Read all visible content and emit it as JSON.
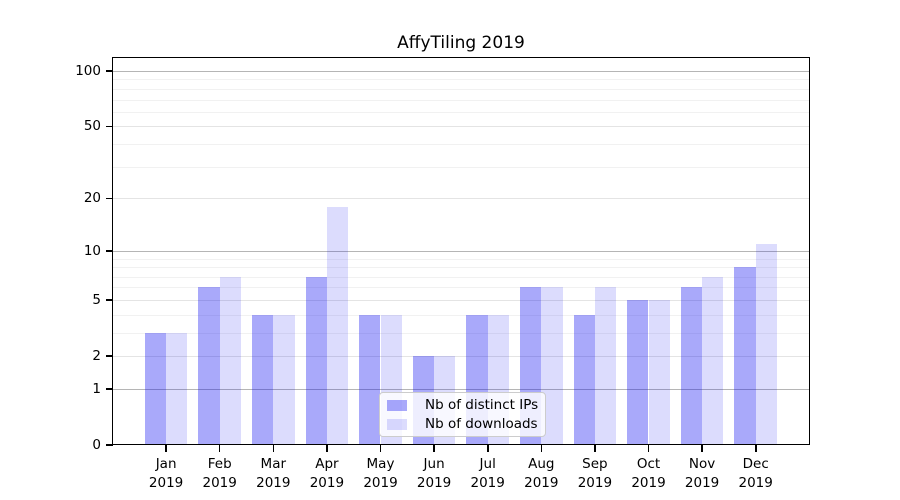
{
  "figure": {
    "title": "AffyTiling 2019",
    "background": "#ffffff"
  },
  "chart_data": {
    "type": "bar",
    "title": "AffyTiling 2019",
    "xlabel": "",
    "ylabel": "",
    "x_tick_labels": [
      [
        "Jan",
        "2019"
      ],
      [
        "Feb",
        "2019"
      ],
      [
        "Mar",
        "2019"
      ],
      [
        "Apr",
        "2019"
      ],
      [
        "May",
        "2019"
      ],
      [
        "Jun",
        "2019"
      ],
      [
        "Jul",
        "2019"
      ],
      [
        "Aug",
        "2019"
      ],
      [
        "Sep",
        "2019"
      ],
      [
        "Oct",
        "2019"
      ],
      [
        "Nov",
        "2019"
      ],
      [
        "Dec",
        "2019"
      ]
    ],
    "series": [
      {
        "name": "Nb of distinct IPs",
        "color": "rgba(10,10,240,0.35)",
        "solid_color_on_white": "#a9a9f9",
        "values": [
          3,
          6,
          4,
          7,
          4,
          2,
          4,
          6,
          4,
          5,
          6,
          8
        ]
      },
      {
        "name": "Nb of downloads",
        "color": "rgba(10,10,240,0.14)",
        "solid_color_on_white": "#dcdcfb",
        "values": [
          3,
          7,
          4,
          18,
          4,
          2,
          4,
          6,
          6,
          5,
          7,
          11
        ]
      }
    ],
    "y_scale": "log10(1+v)",
    "ylim": [
      0,
      117
    ],
    "y_axis": {
      "tick_values": [
        0,
        1,
        2,
        5,
        10,
        20,
        50,
        100
      ],
      "decade_gridlines": [
        1,
        10,
        100
      ],
      "major_gridlines": [
        2,
        5,
        20,
        50
      ],
      "minor_gridlines": [
        3,
        4,
        6,
        7,
        8,
        9,
        30,
        40,
        60,
        70,
        80,
        90
      ]
    },
    "grid": true,
    "legend": {
      "position": "inside-bottom-center",
      "entries": [
        "Nb of distinct IPs",
        "Nb of downloads"
      ]
    }
  }
}
